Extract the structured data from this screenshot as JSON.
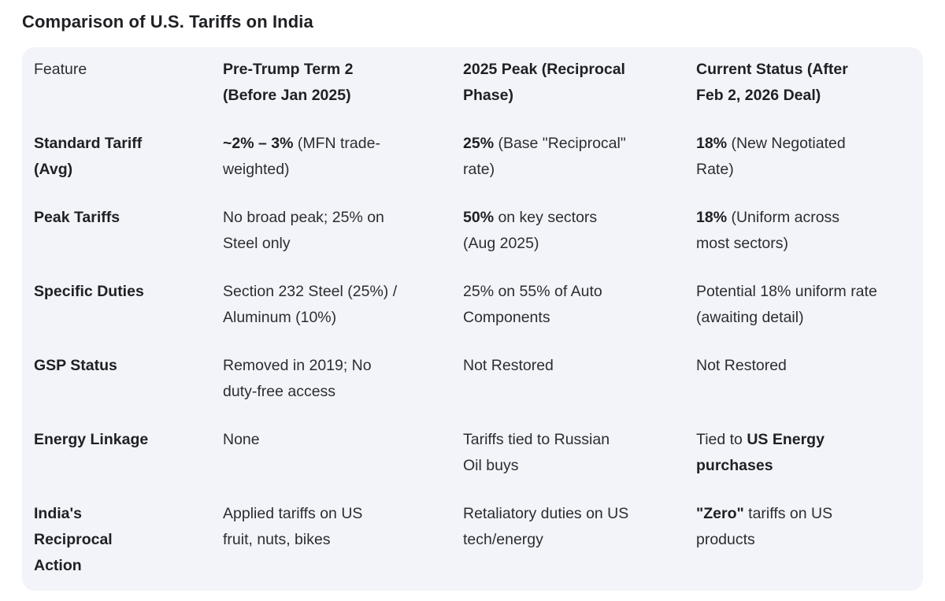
{
  "page": {
    "title": "Comparison of U.S. Tariffs on India"
  },
  "colors": {
    "page_bg": "#ffffff",
    "card_bg": "#f2f4f9",
    "title": "#1e2023",
    "text": "#2b2d30",
    "bold_text": "#1e2023"
  },
  "table": {
    "headers": [
      {
        "label": "Feature",
        "bold": false
      },
      {
        "label": "Pre-Trump Term 2\n(Before Jan 2025)",
        "bold": true
      },
      {
        "label": "2025 Peak (Reciprocal\nPhase)",
        "bold": true
      },
      {
        "label": "Current Status (After\nFeb 2, 2026 Deal)",
        "bold": true
      }
    ],
    "rows": [
      {
        "feature": "Standard Tariff\n(Avg)",
        "cells": [
          [
            {
              "text": "~2% – 3%",
              "bold": true
            },
            {
              "text": " (MFN trade-\nweighted)",
              "bold": false
            }
          ],
          [
            {
              "text": "25%",
              "bold": true
            },
            {
              "text": " (Base \"Reciprocal\"\nrate)",
              "bold": false
            }
          ],
          [
            {
              "text": "18%",
              "bold": true
            },
            {
              "text": " (New Negotiated\nRate)",
              "bold": false
            }
          ]
        ]
      },
      {
        "feature": "Peak Tariffs",
        "cells": [
          [
            {
              "text": "No broad peak; 25% on\nSteel only",
              "bold": false
            }
          ],
          [
            {
              "text": "50%",
              "bold": true
            },
            {
              "text": " on key sectors\n(Aug 2025)",
              "bold": false
            }
          ],
          [
            {
              "text": "18%",
              "bold": true
            },
            {
              "text": " (Uniform across\nmost sectors)",
              "bold": false
            }
          ]
        ]
      },
      {
        "feature": "Specific Duties",
        "cells": [
          [
            {
              "text": "Section 232 Steel (25%) /\nAluminum (10%)",
              "bold": false
            }
          ],
          [
            {
              "text": "25% on 55% of Auto\nComponents",
              "bold": false
            }
          ],
          [
            {
              "text": "Potential 18% uniform rate\n(awaiting detail)",
              "bold": false
            }
          ]
        ]
      },
      {
        "feature": "GSP Status",
        "cells": [
          [
            {
              "text": "Removed in 2019; No\nduty-free access",
              "bold": false
            }
          ],
          [
            {
              "text": "Not Restored",
              "bold": false
            }
          ],
          [
            {
              "text": "Not Restored",
              "bold": false
            }
          ]
        ]
      },
      {
        "feature": "Energy Linkage",
        "cells": [
          [
            {
              "text": "None",
              "bold": false
            }
          ],
          [
            {
              "text": "Tariffs tied to Russian\nOil buys",
              "bold": false
            }
          ],
          [
            {
              "text": "Tied to ",
              "bold": false
            },
            {
              "text": "US Energy\npurchases",
              "bold": true
            }
          ]
        ]
      },
      {
        "feature": "India's\nReciprocal\nAction",
        "cells": [
          [
            {
              "text": "Applied tariffs on US\nfruit, nuts, bikes",
              "bold": false
            }
          ],
          [
            {
              "text": "Retaliatory duties on US\ntech/energy",
              "bold": false
            }
          ],
          [
            {
              "text": "\"Zero\"",
              "bold": true
            },
            {
              "text": " tariffs on US\nproducts",
              "bold": false
            }
          ]
        ]
      }
    ]
  }
}
